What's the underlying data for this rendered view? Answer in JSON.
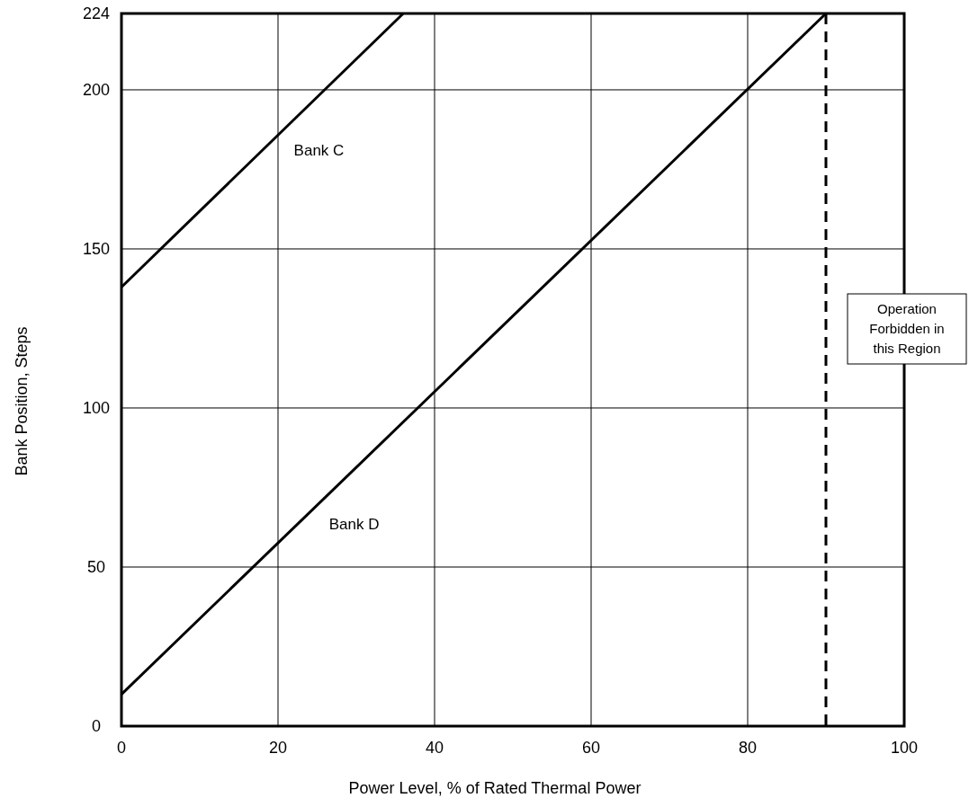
{
  "chart_data": {
    "type": "line",
    "xlabel": "Power Level, % of Rated Thermal Power",
    "ylabel": "Bank Position, Steps",
    "series": [
      {
        "name": "Bank C",
        "color": "#000000",
        "x": [
          0,
          36
        ],
        "values": [
          138,
          224
        ]
      },
      {
        "name": "Bank D",
        "color": "#000000",
        "x": [
          0,
          90
        ],
        "values": [
          10,
          224
        ]
      }
    ],
    "xlim": [
      0,
      100
    ],
    "xticks": [
      0,
      20,
      40,
      60,
      80,
      100
    ],
    "ylim": [
      0,
      224
    ],
    "yticks": [
      0,
      50,
      100,
      150,
      200,
      224
    ],
    "grid": true,
    "legend": false,
    "marker": "none",
    "line_style": "solid",
    "ref_lines": [
      {
        "axis": "x",
        "value": 90,
        "color": "#000000",
        "line_style": "dashed"
      }
    ],
    "annotations": [
      "Operation Forbidden in this Region"
    ]
  }
}
